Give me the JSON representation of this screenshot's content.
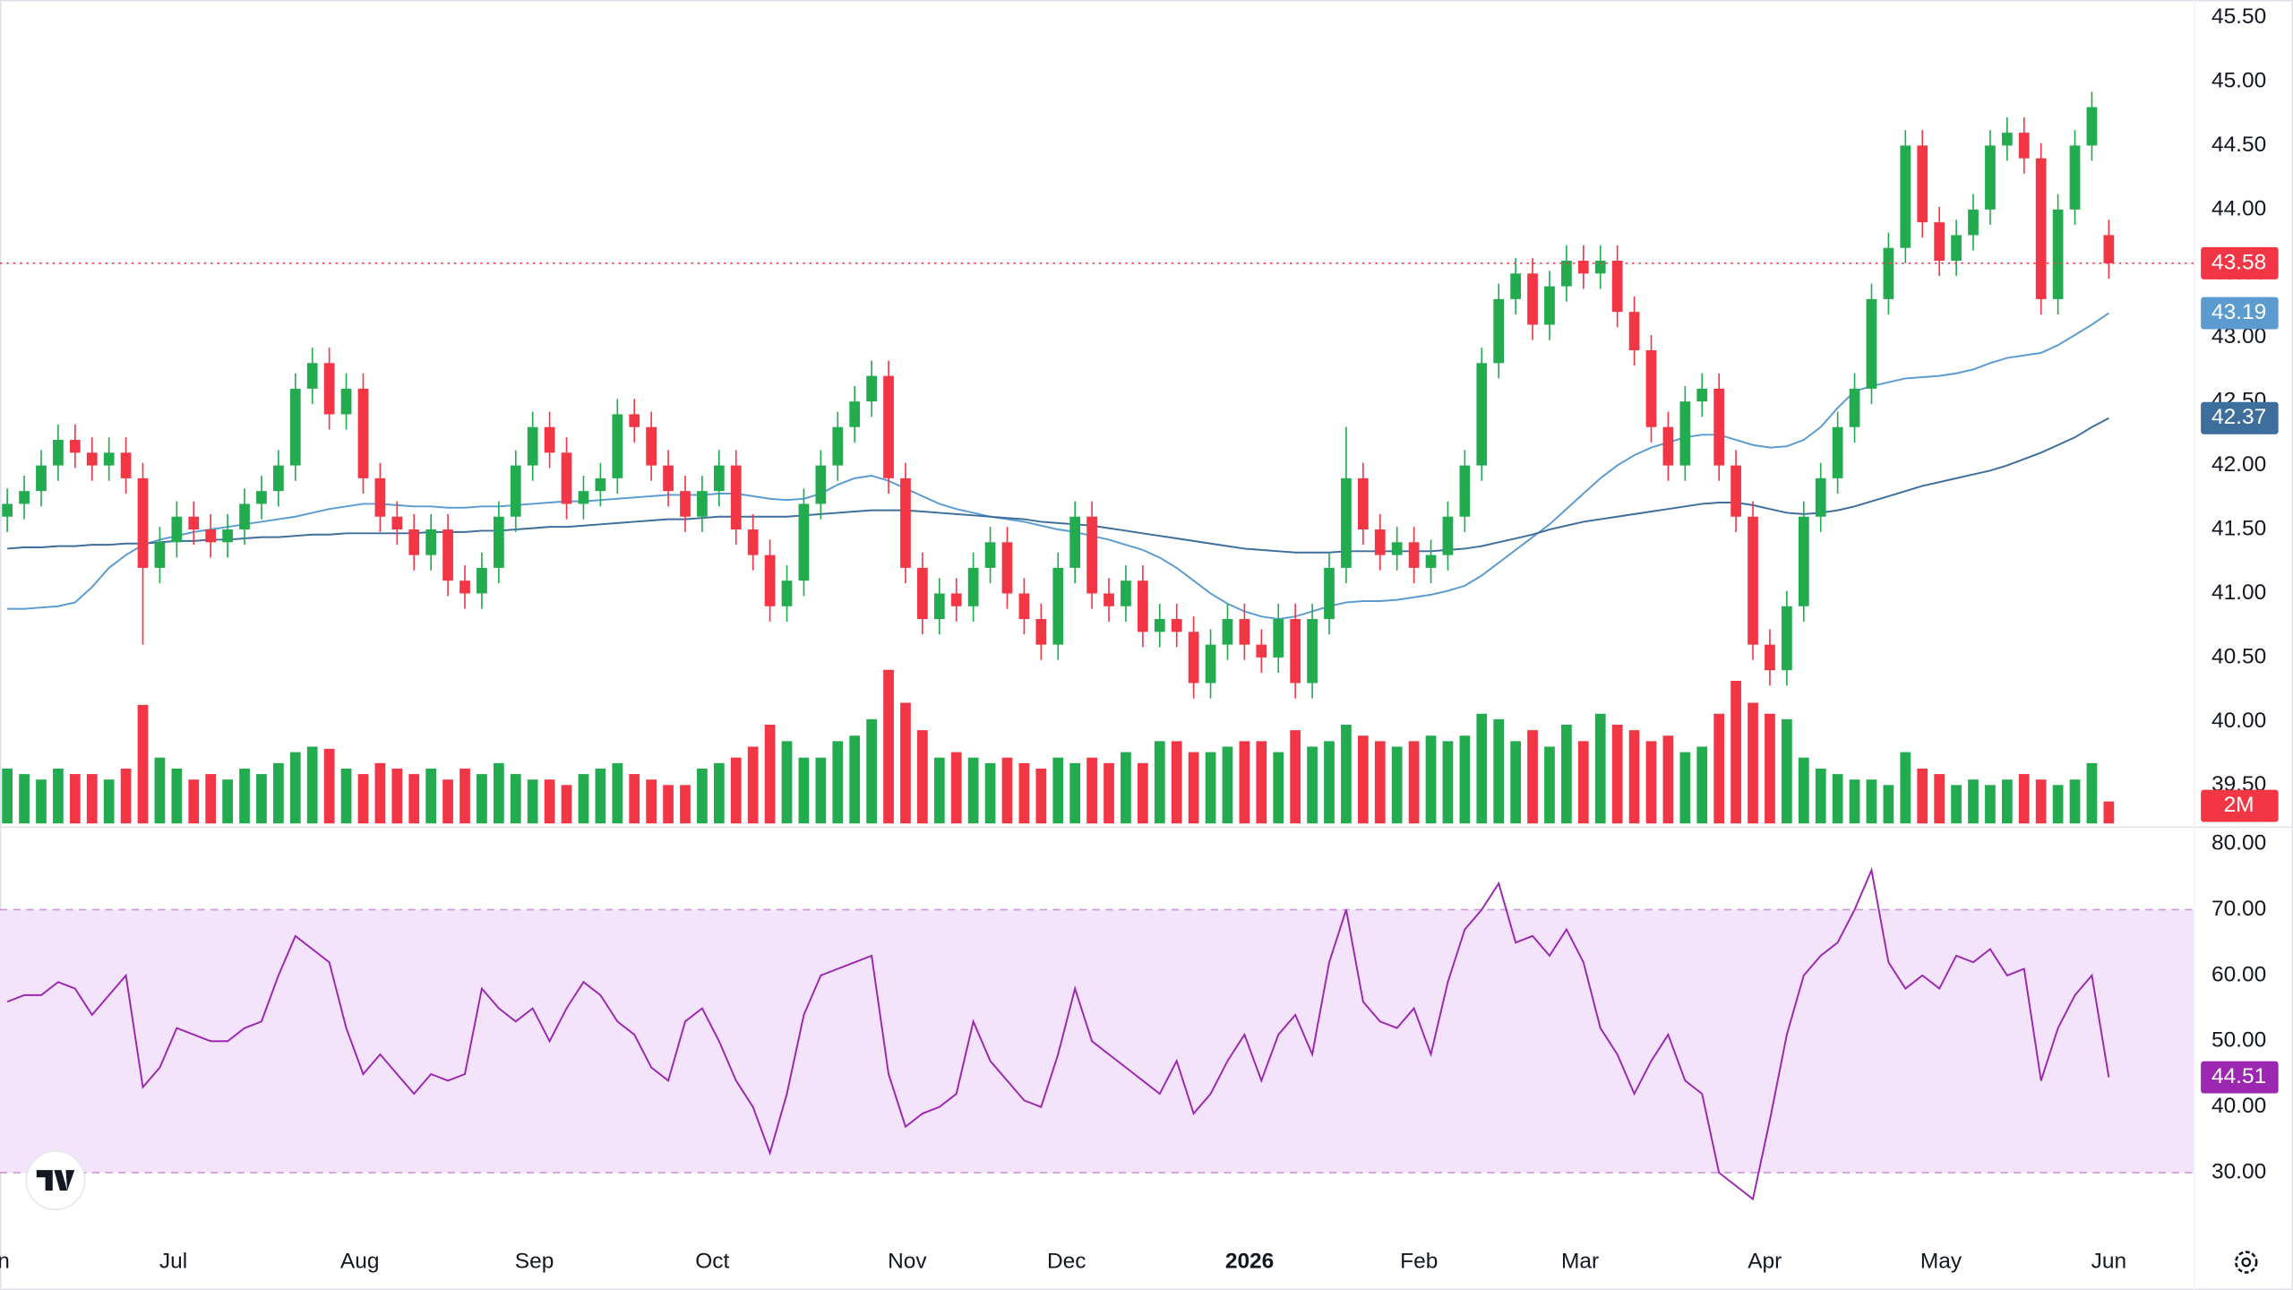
{
  "chart_data": [
    {
      "type": "candlestick",
      "xlim": [
        -0.43,
        129
      ],
      "xticks": [
        {
          "value": -0.9,
          "label": "Jun"
        },
        {
          "value": 9.8,
          "label": "Jul"
        },
        {
          "value": 20.8,
          "label": "Aug"
        },
        {
          "value": 31.1,
          "label": "Sep"
        },
        {
          "value": 41.6,
          "label": "Oct"
        },
        {
          "value": 53.1,
          "label": "Nov"
        },
        {
          "value": 62.5,
          "label": "Dec"
        },
        {
          "value": 73.3,
          "label": "2026"
        },
        {
          "value": 83.3,
          "label": "Feb"
        },
        {
          "value": 92.8,
          "label": "Mar"
        },
        {
          "value": 103.7,
          "label": "Apr"
        },
        {
          "value": 114.1,
          "label": "May"
        },
        {
          "value": 124,
          "label": "Jun"
        }
      ],
      "ylim": [
        39.203,
        45.637
      ],
      "yticks": [
        {
          "value": 39.5,
          "label": "39.50"
        },
        {
          "value": 40,
          "label": "40.00"
        },
        {
          "value": 40.5,
          "label": "40.50"
        },
        {
          "value": 41,
          "label": "41.00"
        },
        {
          "value": 41.5,
          "label": "41.50"
        },
        {
          "value": 42,
          "label": "42.00"
        },
        {
          "value": 42.5,
          "label": "42.50"
        },
        {
          "value": 43,
          "label": "43.00"
        },
        {
          "value": 43.5,
          "label": "43.50"
        },
        {
          "value": 44,
          "label": "44.00"
        },
        {
          "value": 44.5,
          "label": "44.50"
        },
        {
          "value": 45,
          "label": "45.00"
        },
        {
          "value": 45.5,
          "label": "45.50"
        }
      ],
      "grid": true,
      "up_color": "#22ab4f",
      "down_color": "#f23645",
      "open": [
        41.6,
        41.7,
        41.8,
        42.0,
        42.2,
        42.1,
        42.0,
        42.1,
        41.9,
        41.2,
        41.4,
        41.6,
        41.5,
        41.4,
        41.5,
        41.7,
        41.8,
        42.0,
        42.6,
        42.8,
        42.4,
        42.6,
        41.9,
        41.6,
        41.5,
        41.3,
        41.5,
        41.1,
        41.0,
        41.2,
        41.6,
        42.0,
        42.3,
        42.1,
        41.7,
        41.8,
        41.9,
        42.4,
        42.3,
        42.0,
        41.8,
        41.6,
        41.8,
        42.0,
        41.5,
        41.3,
        40.9,
        41.1,
        41.7,
        42.0,
        42.3,
        42.5,
        42.7,
        41.9,
        41.2,
        40.8,
        41.0,
        40.9,
        41.2,
        41.4,
        41.0,
        40.8,
        40.6,
        41.2,
        41.6,
        41.0,
        40.9,
        41.1,
        40.7,
        40.8,
        40.7,
        40.3,
        40.6,
        40.8,
        40.6,
        40.5,
        40.8,
        40.3,
        40.8,
        41.2,
        41.9,
        41.5,
        41.3,
        41.4,
        41.2,
        41.3,
        41.6,
        42.0,
        42.8,
        43.3,
        43.5,
        43.1,
        43.4,
        43.6,
        43.5,
        43.6,
        43.2,
        42.9,
        42.3,
        42.0,
        42.5,
        42.6,
        42.0,
        41.6,
        40.6,
        40.4,
        40.9,
        41.6,
        41.9,
        42.3,
        42.6,
        43.3,
        43.7,
        44.5,
        43.9,
        43.6,
        43.8,
        44.0,
        44.5,
        44.6,
        44.4,
        43.3,
        44.0,
        44.5,
        43.8
      ],
      "high": [
        41.82,
        41.92,
        42.12,
        42.32,
        42.32,
        42.22,
        42.22,
        42.22,
        42.02,
        41.52,
        41.72,
        41.72,
        41.62,
        41.62,
        41.82,
        41.92,
        42.12,
        42.72,
        42.92,
        42.92,
        42.72,
        42.72,
        42.02,
        41.72,
        41.62,
        41.62,
        41.62,
        41.22,
        41.32,
        41.72,
        42.12,
        42.42,
        42.42,
        42.22,
        41.92,
        42.02,
        42.52,
        42.52,
        42.42,
        42.12,
        41.92,
        41.92,
        42.12,
        42.12,
        41.62,
        41.42,
        41.22,
        41.82,
        42.12,
        42.42,
        42.62,
        42.82,
        42.82,
        42.02,
        41.32,
        41.12,
        41.12,
        41.32,
        41.52,
        41.52,
        41.12,
        40.92,
        41.32,
        41.72,
        41.72,
        41.12,
        41.22,
        41.22,
        40.92,
        40.92,
        40.82,
        40.72,
        40.92,
        40.92,
        40.72,
        40.92,
        40.92,
        40.92,
        41.32,
        42.3,
        42.02,
        41.62,
        41.52,
        41.52,
        41.42,
        41.72,
        42.12,
        42.92,
        43.42,
        43.62,
        43.62,
        43.52,
        43.72,
        43.72,
        43.72,
        43.72,
        43.32,
        43.02,
        42.42,
        42.62,
        42.72,
        42.72,
        42.12,
        41.72,
        40.72,
        41.02,
        41.72,
        42.02,
        42.42,
        42.72,
        43.42,
        43.82,
        44.62,
        44.62,
        44.02,
        43.92,
        44.12,
        44.62,
        44.72,
        44.72,
        44.52,
        44.12,
        44.62,
        44.92,
        43.92
      ],
      "low": [
        41.48,
        41.58,
        41.68,
        41.88,
        41.98,
        41.88,
        41.88,
        41.78,
        40.6,
        41.08,
        41.28,
        41.38,
        41.28,
        41.28,
        41.38,
        41.58,
        41.68,
        41.88,
        42.48,
        42.28,
        42.28,
        41.78,
        41.48,
        41.38,
        41.18,
        41.18,
        40.98,
        40.88,
        40.88,
        41.08,
        41.48,
        41.88,
        41.98,
        41.58,
        41.58,
        41.68,
        41.78,
        42.18,
        41.88,
        41.68,
        41.48,
        41.48,
        41.68,
        41.38,
        41.18,
        40.78,
        40.78,
        40.98,
        41.58,
        41.88,
        42.18,
        42.38,
        41.78,
        41.08,
        40.68,
        40.68,
        40.78,
        40.78,
        41.08,
        40.88,
        40.68,
        40.48,
        40.48,
        41.08,
        40.88,
        40.78,
        40.78,
        40.58,
        40.58,
        40.58,
        40.18,
        40.18,
        40.48,
        40.48,
        40.38,
        40.38,
        40.18,
        40.18,
        40.68,
        41.08,
        41.38,
        41.18,
        41.18,
        41.08,
        41.08,
        41.18,
        41.48,
        41.88,
        42.68,
        43.18,
        42.98,
        42.98,
        43.28,
        43.38,
        43.38,
        43.08,
        42.78,
        42.18,
        41.88,
        41.88,
        42.38,
        41.88,
        41.48,
        40.48,
        40.28,
        40.28,
        40.78,
        41.48,
        41.78,
        42.18,
        42.48,
        43.18,
        43.58,
        43.78,
        43.48,
        43.48,
        43.68,
        43.88,
        44.38,
        44.28,
        43.18,
        43.18,
        43.88,
        44.38,
        43.46
      ],
      "close": [
        41.7,
        41.8,
        42.0,
        42.2,
        42.1,
        42.0,
        42.1,
        41.9,
        41.2,
        41.4,
        41.6,
        41.5,
        41.4,
        41.5,
        41.7,
        41.8,
        42.0,
        42.6,
        42.8,
        42.4,
        42.6,
        41.9,
        41.6,
        41.5,
        41.3,
        41.5,
        41.1,
        41.0,
        41.2,
        41.6,
        42.0,
        42.3,
        42.1,
        41.7,
        41.8,
        41.9,
        42.4,
        42.3,
        42.0,
        41.8,
        41.6,
        41.8,
        42.0,
        41.5,
        41.3,
        40.9,
        41.1,
        41.7,
        42.0,
        42.3,
        42.5,
        42.7,
        41.9,
        41.2,
        40.8,
        41.0,
        40.9,
        41.2,
        41.4,
        41.0,
        40.8,
        40.6,
        41.2,
        41.6,
        41.0,
        40.9,
        41.1,
        40.7,
        40.8,
        40.7,
        40.3,
        40.6,
        40.8,
        40.6,
        40.5,
        40.8,
        40.3,
        40.8,
        41.2,
        41.9,
        41.5,
        41.3,
        41.4,
        41.2,
        41.3,
        41.6,
        42.0,
        42.8,
        43.3,
        43.5,
        43.1,
        43.4,
        43.6,
        43.5,
        43.6,
        43.2,
        42.9,
        42.3,
        42.0,
        42.5,
        42.6,
        42.0,
        41.6,
        40.6,
        40.4,
        40.9,
        41.6,
        41.9,
        42.3,
        42.6,
        43.3,
        43.7,
        44.5,
        43.9,
        43.6,
        43.8,
        44.0,
        44.5,
        44.6,
        44.4,
        43.3,
        44.0,
        44.5,
        44.8,
        43.58
      ],
      "volume": {
        "values": [
          5,
          4.5,
          4,
          5,
          4.5,
          4.5,
          4,
          5,
          10.8,
          6,
          5,
          4,
          4.5,
          4,
          5,
          4.5,
          5.5,
          6.5,
          7,
          6.8,
          5,
          4.5,
          5.5,
          5,
          4.5,
          5,
          4,
          5,
          4.5,
          5.5,
          4.5,
          4,
          4,
          3.5,
          4.5,
          5,
          5.5,
          4.5,
          4,
          3.5,
          3.5,
          5,
          5.5,
          6,
          7,
          9,
          7.5,
          6,
          6,
          7.5,
          8,
          9.5,
          14,
          11,
          8.5,
          6,
          6.5,
          6,
          5.5,
          6,
          5.5,
          5,
          6,
          5.5,
          6,
          5.5,
          6.5,
          5.5,
          7.5,
          7.5,
          6.5,
          6.5,
          7,
          7.5,
          7.5,
          6.5,
          8.5,
          7,
          7.5,
          9,
          8,
          7.5,
          7,
          7.5,
          8,
          7.5,
          8,
          10,
          9.5,
          7.5,
          8.5,
          7,
          9,
          7.5,
          10,
          9,
          8.5,
          7.5,
          8,
          6.5,
          7,
          10,
          13,
          11,
          10,
          9.5,
          6,
          5,
          4.5,
          4,
          4,
          3.5,
          6.5,
          5,
          4.5,
          3.5,
          4,
          3.5,
          4,
          4.5,
          4,
          3.5,
          4,
          5.5,
          2
        ],
        "last_label": "2M"
      },
      "moving_averages": [
        {
          "color": "#5b9bd0",
          "values": [
            40.88,
            40.88,
            40.89,
            40.9,
            40.93,
            41.05,
            41.2,
            41.3,
            41.38,
            41.42,
            41.45,
            41.48,
            41.5,
            41.52,
            41.54,
            41.56,
            41.58,
            41.6,
            41.63,
            41.66,
            41.68,
            41.7,
            41.7,
            41.69,
            41.68,
            41.68,
            41.67,
            41.67,
            41.68,
            41.68,
            41.69,
            41.7,
            41.71,
            41.72,
            41.72,
            41.73,
            41.74,
            41.75,
            41.76,
            41.77,
            41.77,
            41.77,
            41.78,
            41.78,
            41.76,
            41.74,
            41.73,
            41.74,
            41.78,
            41.85,
            41.9,
            41.92,
            41.88,
            41.82,
            41.76,
            41.7,
            41.66,
            41.63,
            41.6,
            41.58,
            41.56,
            41.53,
            41.5,
            41.48,
            41.45,
            41.42,
            41.38,
            41.34,
            41.28,
            41.2,
            41.1,
            41.0,
            40.92,
            40.86,
            40.82,
            40.8,
            40.82,
            40.86,
            40.9,
            40.93,
            40.94,
            40.94,
            40.95,
            40.97,
            40.99,
            41.02,
            41.06,
            41.14,
            41.24,
            41.34,
            41.44,
            41.54,
            41.66,
            41.78,
            41.9,
            42.0,
            42.08,
            42.14,
            42.18,
            42.22,
            42.24,
            42.24,
            42.2,
            42.16,
            42.14,
            42.15,
            42.2,
            42.3,
            42.45,
            42.58,
            42.62,
            42.65,
            42.68,
            42.69,
            42.7,
            42.72,
            42.75,
            42.8,
            42.84,
            42.86,
            42.88,
            42.94,
            43.02,
            43.1,
            43.19
          ]
        },
        {
          "color": "#3d6e9c",
          "values": [
            41.35,
            41.36,
            41.36,
            41.37,
            41.37,
            41.38,
            41.38,
            41.39,
            41.39,
            41.4,
            41.41,
            41.41,
            41.42,
            41.42,
            41.43,
            41.44,
            41.44,
            41.45,
            41.46,
            41.46,
            41.47,
            41.47,
            41.47,
            41.47,
            41.47,
            41.48,
            41.48,
            41.48,
            41.49,
            41.49,
            41.5,
            41.51,
            41.52,
            41.52,
            41.53,
            41.54,
            41.55,
            41.56,
            41.57,
            41.58,
            41.58,
            41.59,
            41.6,
            41.6,
            41.6,
            41.6,
            41.6,
            41.61,
            41.62,
            41.63,
            41.64,
            41.65,
            41.65,
            41.65,
            41.64,
            41.63,
            41.62,
            41.61,
            41.6,
            41.59,
            41.58,
            41.56,
            41.55,
            41.54,
            41.53,
            41.51,
            41.49,
            41.47,
            41.45,
            41.43,
            41.41,
            41.39,
            41.37,
            41.35,
            41.34,
            41.33,
            41.32,
            41.32,
            41.32,
            41.33,
            41.33,
            41.33,
            41.33,
            41.33,
            41.33,
            41.34,
            41.35,
            41.37,
            41.4,
            41.43,
            41.46,
            41.5,
            41.53,
            41.56,
            41.58,
            41.6,
            41.62,
            41.64,
            41.66,
            41.68,
            41.7,
            41.71,
            41.71,
            41.69,
            41.66,
            41.63,
            41.62,
            41.63,
            41.65,
            41.68,
            41.72,
            41.76,
            41.8,
            41.84,
            41.87,
            41.9,
            41.93,
            41.96,
            42.0,
            42.05,
            42.1,
            42.16,
            42.22,
            42.3,
            42.37
          ]
        }
      ]
    },
    {
      "type": "line",
      "color": "#9c27b0",
      "band": [
        30,
        70
      ],
      "band_color": "#f3e4fb",
      "ylim": [
        20.4,
        82
      ],
      "yticks": [
        {
          "value": 30,
          "label": "30.00"
        },
        {
          "value": 40,
          "label": "40.00"
        },
        {
          "value": 50,
          "label": "50.00"
        },
        {
          "value": 60,
          "label": "60.00"
        },
        {
          "value": 70,
          "label": "70.00"
        },
        {
          "value": 80,
          "label": "80.00"
        }
      ],
      "values": [
        56,
        57,
        57,
        59,
        58,
        54,
        57,
        60,
        43,
        46,
        52,
        51,
        50,
        50,
        52,
        53,
        60,
        66,
        64,
        62,
        52,
        45,
        48,
        45,
        42,
        45,
        44,
        45,
        58,
        55,
        53,
        55,
        50,
        55,
        59,
        57,
        53,
        51,
        46,
        44,
        53,
        55,
        50,
        44,
        40,
        33,
        42,
        54,
        60,
        61,
        62,
        63,
        45,
        37,
        39,
        40,
        42,
        53,
        47,
        44,
        41,
        40,
        48,
        58,
        50,
        48,
        46,
        44,
        42,
        47,
        39,
        42,
        47,
        51,
        44,
        51,
        54,
        48,
        62,
        70,
        56,
        53,
        52,
        55,
        48,
        59,
        67,
        70,
        74,
        65,
        66,
        63,
        67,
        62,
        52,
        48,
        42,
        47,
        51,
        44,
        42,
        30,
        28,
        26,
        38,
        51,
        60,
        63,
        65,
        70,
        76,
        62,
        58,
        60,
        58,
        63,
        62,
        64,
        60,
        61,
        44,
        52,
        57,
        60,
        44.51
      ]
    }
  ]
}
